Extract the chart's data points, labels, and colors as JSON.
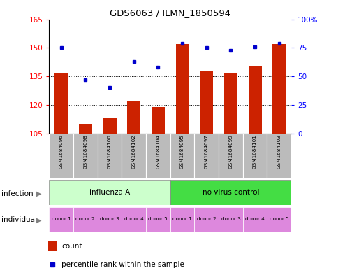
{
  "title": "GDS6063 / ILMN_1850594",
  "samples": [
    "GSM1684096",
    "GSM1684098",
    "GSM1684100",
    "GSM1684102",
    "GSM1684104",
    "GSM1684095",
    "GSM1684097",
    "GSM1684099",
    "GSM1684101",
    "GSM1684103"
  ],
  "counts": [
    137,
    110,
    113,
    122,
    119,
    152,
    138,
    137,
    140,
    152
  ],
  "percentiles": [
    75,
    47,
    40,
    63,
    58,
    79,
    75,
    73,
    76,
    79
  ],
  "ymin": 105,
  "ymax": 165,
  "yticks": [
    105,
    120,
    135,
    150,
    165
  ],
  "y2min": 0,
  "y2max": 100,
  "y2ticks": [
    0,
    25,
    50,
    75,
    100
  ],
  "y2labels": [
    "0",
    "25",
    "50",
    "75",
    "100%"
  ],
  "bar_color": "#cc2200",
  "dot_color": "#0000cc",
  "infection_groups": [
    {
      "label": "influenza A",
      "start": 0,
      "end": 5,
      "color": "#ccffcc"
    },
    {
      "label": "no virus control",
      "start": 5,
      "end": 10,
      "color": "#44dd44"
    }
  ],
  "individual_labels": [
    "donor 1",
    "donor 2",
    "donor 3",
    "donor 4",
    "donor 5",
    "donor 1",
    "donor 2",
    "donor 3",
    "donor 4",
    "donor 5"
  ],
  "individual_color": "#dd88dd",
  "xtick_bg_color": "#bbbbbb",
  "legend_count_color": "#cc2200",
  "legend_dot_color": "#0000cc",
  "legend_count_label": "count",
  "legend_dot_label": "percentile rank within the sample"
}
